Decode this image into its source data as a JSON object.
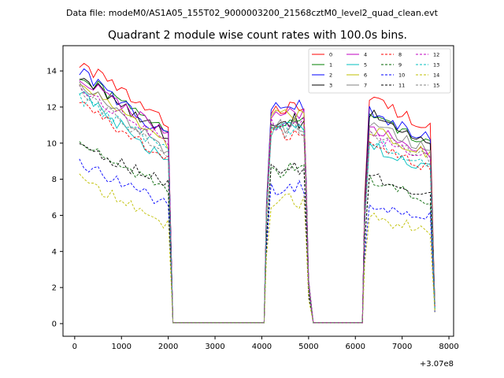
{
  "chart_data": {
    "type": "line",
    "suptitle": "Data file: modeM0/AS1A05_155T02_9000003200_21568cztM0_level2_quad_clean.evt",
    "title": "Quadrant 2 module wise count rates with 100.0s bins.",
    "xlabel": "",
    "ylabel": "",
    "x_offset_label": "+3.07e8",
    "xlim": [
      -250,
      8100
    ],
    "ylim": [
      -0.7,
      15.4
    ],
    "xticks": [
      0,
      1000,
      2000,
      3000,
      4000,
      5000,
      6000,
      7000,
      8000
    ],
    "xtick_labels": [
      "0",
      "1000",
      "2000",
      "3000",
      "4000",
      "5000",
      "6000",
      "7000",
      "8000"
    ],
    "yticks": [
      0,
      2,
      4,
      6,
      8,
      10,
      12,
      14
    ],
    "ytick_labels": [
      "0",
      "2",
      "4",
      "6",
      "8",
      "10",
      "12",
      "14"
    ],
    "legend_position": "top-right",
    "legend_columns": 4,
    "segments": [
      {
        "start": 100,
        "end": 2000,
        "fall_to": 2100
      },
      {
        "start": 4100,
        "end": 5000,
        "fall_to": 5100
      },
      {
        "start": 6200,
        "end": 7600,
        "fall_to": 7700
      }
    ],
    "zero_gaps": [
      [
        2100,
        4050
      ],
      [
        5100,
        6150
      ]
    ],
    "series": [
      {
        "name": "0",
        "color": "#ff0000",
        "dashed": false,
        "levels": [
          14.5,
          11.0,
          12.0,
          11.7
        ]
      },
      {
        "name": "1",
        "color": "#008000",
        "dashed": false,
        "levels": [
          13.8,
          10.5,
          11.2,
          10.8
        ]
      },
      {
        "name": "2",
        "color": "#0000ff",
        "dashed": false,
        "levels": [
          14.0,
          10.3,
          12.1,
          11.0
        ]
      },
      {
        "name": "3",
        "color": "#000000",
        "dashed": false,
        "levels": [
          13.7,
          10.4,
          11.2,
          10.9
        ]
      },
      {
        "name": "4",
        "color": "#c000c0",
        "dashed": false,
        "levels": [
          13.6,
          10.5,
          11.5,
          10.2
        ]
      },
      {
        "name": "5",
        "color": "#00bfbf",
        "dashed": false,
        "levels": [
          12.8,
          8.8,
          10.9,
          9.2
        ]
      },
      {
        "name": "6",
        "color": "#bfbf00",
        "dashed": false,
        "levels": [
          13.3,
          9.8,
          11.5,
          10.1
        ]
      },
      {
        "name": "7",
        "color": "#808080",
        "dashed": false,
        "levels": [
          13.4,
          9.5,
          11.0,
          10.3
        ]
      },
      {
        "name": "8",
        "color": "#ff0000",
        "dashed": true,
        "levels": [
          12.2,
          9.0,
          10.5,
          9.3
        ]
      },
      {
        "name": "9",
        "color": "#006400",
        "dashed": true,
        "levels": [
          10.0,
          7.4,
          8.5,
          7.4
        ]
      },
      {
        "name": "10",
        "color": "#0000ff",
        "dashed": true,
        "levels": [
          9.0,
          6.5,
          7.5,
          6.3
        ]
      },
      {
        "name": "11",
        "color": "#000000",
        "dashed": true,
        "levels": [
          9.8,
          7.7,
          8.5,
          7.6
        ]
      },
      {
        "name": "12",
        "color": "#c000c0",
        "dashed": true,
        "levels": [
          13.0,
          10.1,
          11.0,
          9.8
        ]
      },
      {
        "name": "13",
        "color": "#00bfbf",
        "dashed": true,
        "levels": [
          12.5,
          9.6,
          10.8,
          9.5
        ]
      },
      {
        "name": "14",
        "color": "#bfbf00",
        "dashed": true,
        "levels": [
          8.0,
          5.5,
          6.8,
          5.5
        ]
      },
      {
        "name": "15",
        "color": "#808080",
        "dashed": true,
        "levels": [
          12.9,
          9.4,
          10.7,
          9.8
        ]
      }
    ]
  }
}
